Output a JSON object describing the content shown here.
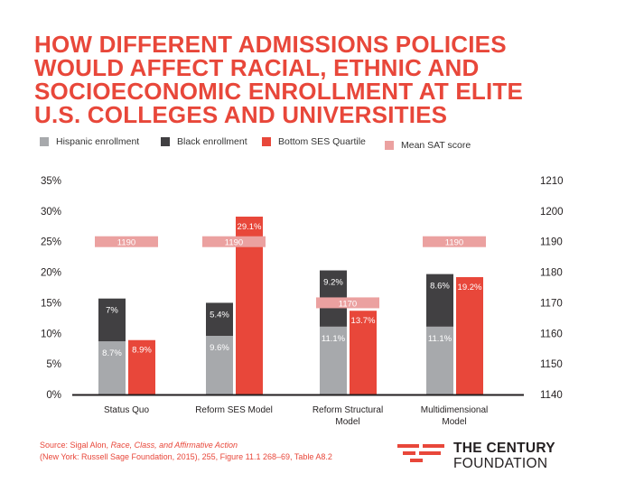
{
  "title_lines": [
    "HOW DIFFERENT ADMISSIONS POLICIES",
    "WOULD AFFECT RACIAL, ETHNIC AND",
    "SOCIOECONOMIC ENROLLMENT AT ELITE",
    "U.S. COLLEGES AND UNIVERSITIES"
  ],
  "colors": {
    "hispanic": "#a7a9ac",
    "black": "#414042",
    "bottom_ses": "#e8473a",
    "sat": "#eba1a0",
    "title": "#e8473a",
    "axis": "#231f20"
  },
  "chart_data": {
    "type": "bar",
    "stacked_series": [
      {
        "name": "Hispanic enrollment",
        "values": [
          8.7,
          9.6,
          11.1,
          11.1
        ],
        "labels": [
          "8.7%",
          "9.6%",
          "11.1%",
          "11.1%"
        ]
      },
      {
        "name": "Black enrollment",
        "values": [
          7,
          5.4,
          9.2,
          8.6
        ],
        "labels": [
          "7%",
          "5.4%",
          "9.2%",
          "8.6%"
        ]
      }
    ],
    "side_series": {
      "name": "Bottom SES Quartile",
      "values": [
        8.9,
        29.1,
        13.7,
        19.2
      ],
      "labels": [
        "8.9%",
        "29.1%",
        "13.7%",
        "19.2%"
      ]
    },
    "secondary_series": {
      "name": "Mean SAT score",
      "values": [
        1190,
        1190,
        1170,
        1190
      ],
      "labels": [
        "1190",
        "1190",
        "1170",
        "1190"
      ]
    },
    "categories": [
      {
        "lines": [
          "Status Quo"
        ]
      },
      {
        "lines": [
          "Reform SES Model"
        ]
      },
      {
        "lines": [
          "Reform Structural",
          "Model"
        ]
      },
      {
        "lines": [
          "Multidimensional",
          "Model"
        ]
      }
    ],
    "y_left": {
      "min": 0,
      "max": 35,
      "ticks": [
        "0%",
        "5%",
        "10%",
        "15%",
        "20%",
        "25%",
        "30%",
        "35%"
      ]
    },
    "y_right": {
      "min": 1140,
      "max": 1210,
      "ticks": [
        "1140",
        "1150",
        "1160",
        "1170",
        "1180",
        "1190",
        "1200",
        "1210"
      ]
    }
  },
  "legend": [
    {
      "label": "Hispanic enrollment",
      "color": "#a7a9ac"
    },
    {
      "label": "Black enrollment",
      "color": "#414042"
    },
    {
      "label": "Bottom SES Quartile",
      "color": "#e8473a"
    },
    {
      "label": "Mean SAT score",
      "color": "#eba1a0"
    }
  ],
  "source": {
    "prefix": "Source: Sigal Alon, ",
    "italic": "Race, Class, and Affirmative Action",
    "line2": "(New York: Russell Sage Foundation, 2015), 255, Figure 11.1 268–69, Table A8.2"
  },
  "logo": {
    "line1": "THE CENTURY",
    "line2": "FOUNDATION"
  }
}
